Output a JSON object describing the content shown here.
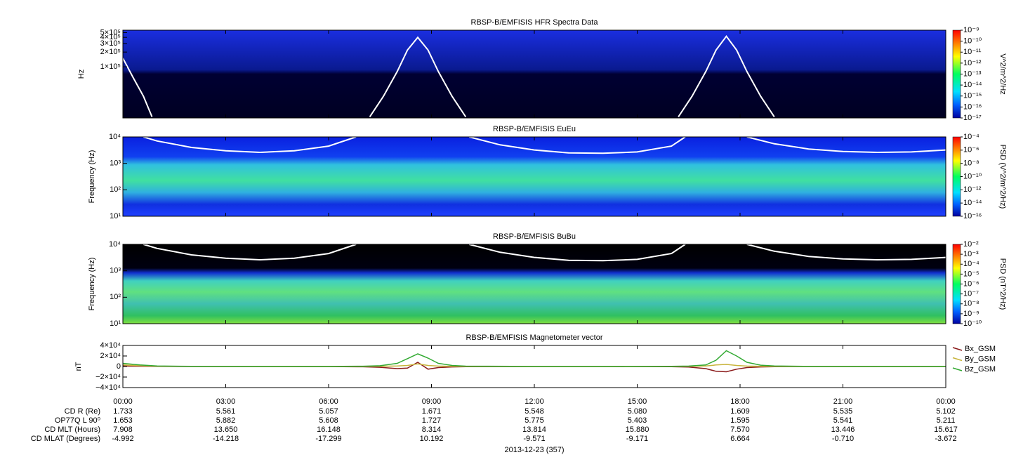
{
  "chart_data": [
    {
      "type": "spectrogram",
      "title": "RBSP-B/EMFISIS  HFR Spectra Data",
      "ylabel": "Hz",
      "ylog": true,
      "ylim": [
        9000,
        560000
      ],
      "yticks": [
        {
          "value": 100000,
          "label": "1×10⁵"
        },
        {
          "value": 200000,
          "label": "2×10⁵"
        },
        {
          "value": 300000,
          "label": "3×10⁵"
        },
        {
          "value": 400000,
          "label": "4×10⁵"
        },
        {
          "value": 500000,
          "label": "5×10⁵"
        }
      ],
      "colorbar": {
        "label": "V^2/m^2/Hz",
        "log": true,
        "lim": [
          1e-17,
          1e-09
        ],
        "ticks": [
          {
            "value": 1e-17,
            "label": "10⁻¹⁷"
          },
          {
            "value": 1e-16,
            "label": "10⁻¹⁶"
          },
          {
            "value": 1e-15,
            "label": "10⁻¹⁵"
          },
          {
            "value": 1e-14,
            "label": "10⁻¹⁴"
          },
          {
            "value": 1e-13,
            "label": "10⁻¹³"
          },
          {
            "value": 1e-12,
            "label": "10⁻¹²"
          },
          {
            "value": 1e-11,
            "label": "10⁻¹¹"
          },
          {
            "value": 1e-10,
            "label": "10⁻¹⁰"
          },
          {
            "value": 1e-09,
            "label": "10⁻⁹"
          }
        ]
      },
      "overlay": {
        "color": "#ffffff",
        "x": [
          0,
          0.3,
          0.6,
          0.85,
          4,
          7.2,
          7.6,
          8,
          8.3,
          8.6,
          8.9,
          9.2,
          9.6,
          10,
          13,
          16.2,
          16.6,
          17,
          17.3,
          17.6,
          17.9,
          18.2,
          18.6,
          19
        ],
        "values": [
          150000,
          60000,
          25000,
          9500,
          null,
          9500,
          25000,
          80000,
          220000,
          400000,
          220000,
          80000,
          25000,
          9500,
          null,
          9500,
          25000,
          80000,
          220000,
          420000,
          220000,
          80000,
          25000,
          9500
        ]
      }
    },
    {
      "type": "spectrogram",
      "title": "RBSP-B/EMFISIS  EuEu",
      "ylabel": "Frequency (Hz)",
      "ylog": true,
      "ylim": [
        10,
        10000
      ],
      "yticks": [
        {
          "value": 10,
          "label": "10¹"
        },
        {
          "value": 100,
          "label": "10²"
        },
        {
          "value": 1000,
          "label": "10³"
        },
        {
          "value": 10000,
          "label": "10⁴"
        }
      ],
      "colorbar": {
        "label": "PSD (V^2/m^2/Hz)",
        "log": true,
        "lim": [
          1e-16,
          0.0001
        ],
        "ticks": [
          {
            "value": 1e-16,
            "label": "10⁻¹⁶"
          },
          {
            "value": 1e-14,
            "label": "10⁻¹⁴"
          },
          {
            "value": 1e-12,
            "label": "10⁻¹²"
          },
          {
            "value": 1e-10,
            "label": "10⁻¹⁰"
          },
          {
            "value": 1e-08,
            "label": "10⁻⁸"
          },
          {
            "value": 1e-06,
            "label": "10⁻⁶"
          },
          {
            "value": 0.0001,
            "label": "10⁻⁴"
          }
        ]
      },
      "overlay": {
        "color": "#ffffff",
        "x": [
          0.6,
          1,
          2,
          3,
          4,
          5,
          6,
          6.8,
          8,
          10.1,
          11,
          12,
          13,
          14,
          15,
          16,
          16.4,
          17.5,
          18.2,
          19,
          20,
          21,
          22,
          23,
          24
        ],
        "values": [
          10000,
          7000,
          4000,
          3000,
          2600,
          3000,
          4500,
          10000,
          null,
          10000,
          5000,
          3200,
          2500,
          2400,
          2700,
          4500,
          10000,
          null,
          10000,
          5500,
          3500,
          2800,
          2600,
          2700,
          3200
        ]
      }
    },
    {
      "type": "spectrogram",
      "title": "RBSP-B/EMFISIS  BuBu",
      "ylabel": "Frequency (Hz)",
      "ylog": true,
      "ylim": [
        10,
        10000
      ],
      "yticks": [
        {
          "value": 10,
          "label": "10¹"
        },
        {
          "value": 100,
          "label": "10²"
        },
        {
          "value": 1000,
          "label": "10³"
        },
        {
          "value": 10000,
          "label": "10⁴"
        }
      ],
      "colorbar": {
        "label": "PSD (nT^2/Hz)",
        "log": true,
        "lim": [
          1e-10,
          0.01
        ],
        "ticks": [
          {
            "value": 1e-10,
            "label": "10⁻¹⁰"
          },
          {
            "value": 1e-09,
            "label": "10⁻⁹"
          },
          {
            "value": 1e-08,
            "label": "10⁻⁸"
          },
          {
            "value": 1e-07,
            "label": "10⁻⁷"
          },
          {
            "value": 1e-06,
            "label": "10⁻⁶"
          },
          {
            "value": 1e-05,
            "label": "10⁻⁵"
          },
          {
            "value": 0.0001,
            "label": "10⁻⁴"
          },
          {
            "value": 0.001,
            "label": "10⁻³"
          },
          {
            "value": 0.01,
            "label": "10⁻²"
          }
        ]
      },
      "overlay": {
        "color": "#ffffff",
        "x": [
          0.6,
          1,
          2,
          3,
          4,
          5,
          6,
          6.8,
          8,
          10.1,
          11,
          12,
          13,
          14,
          15,
          16,
          16.4,
          17.5,
          18.2,
          19,
          20,
          21,
          22,
          23,
          24
        ],
        "values": [
          10000,
          7000,
          4000,
          3000,
          2600,
          3000,
          4500,
          10000,
          null,
          10000,
          5000,
          3200,
          2500,
          2400,
          2700,
          4500,
          10000,
          null,
          10000,
          5500,
          3500,
          2800,
          2600,
          2700,
          3200
        ]
      }
    },
    {
      "type": "line",
      "title": "RBSP-B/EMFISIS  Magnetometer vector",
      "ylabel": "nT",
      "legend": "right",
      "ylim": [
        -40000,
        40000
      ],
      "yticks": [
        {
          "value": -40000,
          "label": "−4×10⁴"
        },
        {
          "value": -20000,
          "label": "−2×10⁴"
        },
        0,
        {
          "value": 20000,
          "label": "2×10⁴"
        },
        {
          "value": 40000,
          "label": "4×10⁴"
        }
      ],
      "xlim": [
        0,
        24
      ],
      "xticks": [
        {
          "value": 0,
          "label": "00:00"
        },
        {
          "value": 3,
          "label": "03:00"
        },
        {
          "value": 6,
          "label": "06:00"
        },
        {
          "value": 9,
          "label": "09:00"
        },
        {
          "value": 12,
          "label": "12:00"
        },
        {
          "value": 15,
          "label": "15:00"
        },
        {
          "value": 18,
          "label": "18:00"
        },
        {
          "value": 21,
          "label": "21:00"
        },
        {
          "value": 24,
          "label": "00:00"
        }
      ],
      "x": [
        0,
        0.5,
        1,
        2,
        4,
        6,
        7,
        7.5,
        8,
        8.3,
        8.6,
        8.9,
        9.2,
        9.6,
        10,
        12,
        14,
        16,
        16.5,
        17,
        17.3,
        17.6,
        17.9,
        18.2,
        18.6,
        19,
        20,
        22,
        24
      ],
      "series": [
        {
          "name": "Bx_GSM",
          "color": "#8b1a1a",
          "values": [
            1000,
            500,
            200,
            0,
            0,
            -200,
            -500,
            -1500,
            -4000,
            -3000,
            8000,
            -5000,
            -2000,
            -800,
            -300,
            0,
            0,
            -300,
            -1000,
            -4000,
            -9000,
            -10000,
            -5000,
            -2000,
            -800,
            -300,
            0,
            0,
            0
          ]
        },
        {
          "name": "By_GSM",
          "color": "#c8b43c",
          "values": [
            3000,
            1500,
            500,
            100,
            0,
            0,
            200,
            500,
            1000,
            2000,
            5000,
            2000,
            800,
            300,
            100,
            0,
            0,
            100,
            300,
            1000,
            3000,
            4000,
            2000,
            800,
            300,
            100,
            0,
            0,
            0
          ]
        },
        {
          "name": "Bz_GSM",
          "color": "#33aa33",
          "values": [
            6000,
            3000,
            1000,
            300,
            200,
            200,
            500,
            1500,
            6000,
            15000,
            24000,
            16000,
            6000,
            2000,
            700,
            200,
            200,
            300,
            800,
            3000,
            12000,
            30000,
            20000,
            8000,
            2500,
            1000,
            300,
            200,
            300
          ]
        }
      ]
    }
  ],
  "ephemeris": {
    "rows": [
      {
        "label": "CD R (Re)",
        "values": [
          "1.733",
          "5.561",
          "5.057",
          "1.671",
          "5.548",
          "5.080",
          "1.609",
          "5.535",
          "5.102"
        ]
      },
      {
        "label": "OP77Q L 90⁰",
        "values": [
          "1.653",
          "5.882",
          "5.608",
          "1.727",
          "5.775",
          "5.403",
          "1.595",
          "5.541",
          "5.211"
        ]
      },
      {
        "label": "CD MLT (Hours)",
        "values": [
          "7.908",
          "13.650",
          "16.148",
          "8.314",
          "13.814",
          "15.880",
          "7.570",
          "13.446",
          "15.617"
        ]
      },
      {
        "label": "CD MLAT (Degrees)",
        "values": [
          "-4.992",
          "-14.218",
          "-17.299",
          "10.192",
          "-9.571",
          "-9.171",
          "6.664",
          "-0.710",
          "-3.672"
        ]
      }
    ],
    "date": "2013-12-23 (357)"
  }
}
